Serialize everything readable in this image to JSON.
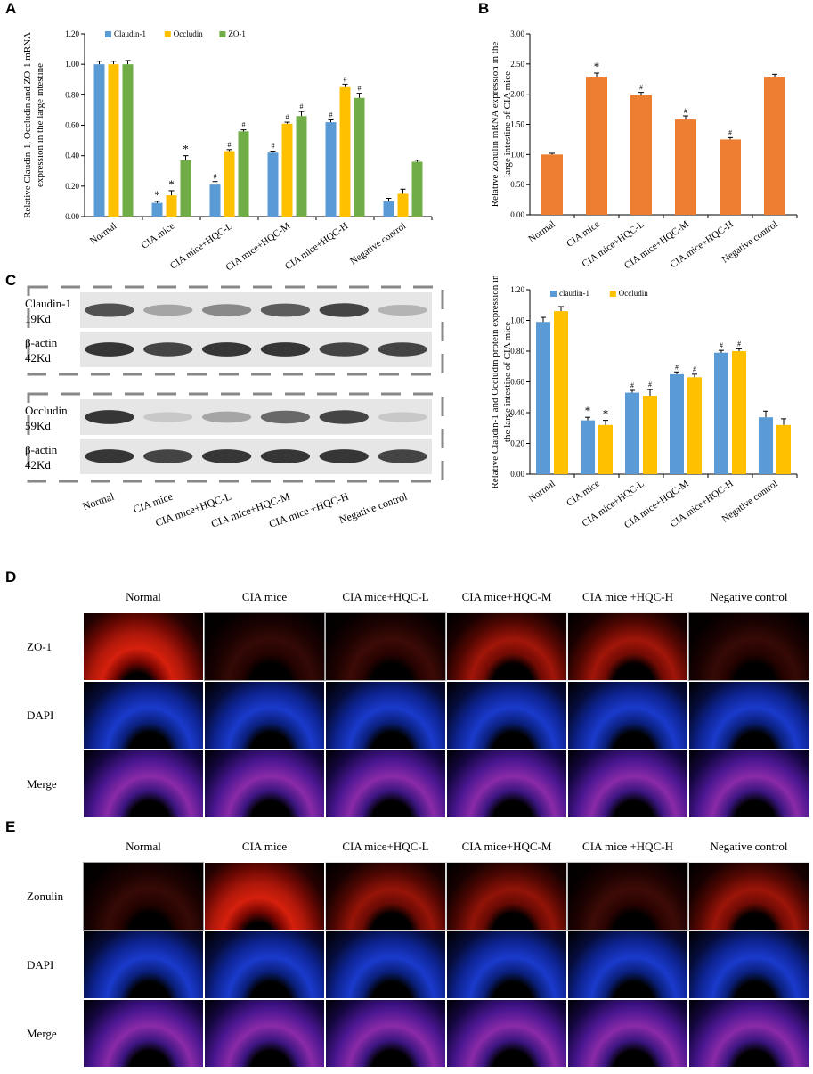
{
  "panels": {
    "a": "A",
    "b": "B",
    "c": "C",
    "d": "D",
    "e": "E"
  },
  "chart_data": [
    {
      "id": "A",
      "type": "bar",
      "ylabel": "Relative Claudin-1, Occludin and ZO-1 mRNA expression in the large intestine",
      "ylim": [
        0,
        1.2
      ],
      "yticks": [
        "0.00",
        "0.20",
        "0.40",
        "0.60",
        "0.80",
        "1.00",
        "1.20"
      ],
      "categories": [
        "Normal",
        "CIA mice",
        "CIA mice+HQC-L",
        "CIA mice+HQC-M",
        "CIA mice+HQC-H",
        "Negative control"
      ],
      "series": [
        {
          "name": "Claudin-1",
          "color": "#5b9bd5",
          "values": [
            1.0,
            0.09,
            0.21,
            0.42,
            0.62,
            0.1
          ],
          "errors": [
            0.02,
            0.01,
            0.02,
            0.01,
            0.015,
            0.02
          ],
          "marks": [
            "",
            "*",
            "#",
            "#",
            "#",
            ""
          ]
        },
        {
          "name": "Occludin",
          "color": "#ffc000",
          "values": [
            1.0,
            0.14,
            0.43,
            0.61,
            0.85,
            0.15
          ],
          "errors": [
            0.02,
            0.03,
            0.01,
            0.01,
            0.02,
            0.03
          ],
          "marks": [
            "",
            "*",
            "#",
            "#",
            "#",
            ""
          ]
        },
        {
          "name": "ZO-1",
          "color": "#70ad47",
          "values": [
            1.0,
            0.37,
            0.56,
            0.66,
            0.78,
            0.36
          ],
          "errors": [
            0.025,
            0.03,
            0.01,
            0.03,
            0.03,
            0.01
          ],
          "marks": [
            "",
            "*",
            "#",
            "#",
            "#",
            ""
          ]
        }
      ]
    },
    {
      "id": "B",
      "type": "bar",
      "ylabel": "Relative Zonulin mRNA expression in the large intestine of CIA mice",
      "ylim": [
        0,
        3.0
      ],
      "yticks": [
        "0.00",
        "0.50",
        "1.00",
        "1.50",
        "2.00",
        "2.50",
        "3.00"
      ],
      "categories": [
        "Normal",
        "CIA mice",
        "CIA mice+HQC-L",
        "CIA mice+HQC-M",
        "CIA mice+HQC-H",
        "Negative control"
      ],
      "series": [
        {
          "name": "Zonulin",
          "color": "#ed7d31",
          "values": [
            1.0,
            2.29,
            1.98,
            1.58,
            1.25,
            2.29
          ],
          "errors": [
            0.02,
            0.06,
            0.05,
            0.06,
            0.03,
            0.04
          ],
          "marks": [
            "",
            "*",
            "#",
            "#",
            "#",
            ""
          ]
        }
      ]
    },
    {
      "id": "C",
      "type": "bar",
      "ylabel": "Relative Claudin-1 and Occludin protein expression in the large intestine of CIA mice",
      "ylim": [
        0,
        1.2
      ],
      "yticks": [
        "0.00",
        "0.20",
        "0.40",
        "0.60",
        "0.80",
        "1.00",
        "1.20"
      ],
      "categories": [
        "Normal",
        "CIA mice",
        "CIA mice+HQC-L",
        "CIA mice+HQC-M",
        "CIA mice+HQC-H",
        "Negative control"
      ],
      "series": [
        {
          "name": "claudin-1",
          "color": "#5b9bd5",
          "values": [
            0.99,
            0.35,
            0.53,
            0.65,
            0.79,
            0.37
          ],
          "errors": [
            0.03,
            0.02,
            0.015,
            0.015,
            0.015,
            0.04
          ],
          "marks": [
            "",
            "*",
            "#",
            "#",
            "#",
            ""
          ]
        },
        {
          "name": "Occludin",
          "color": "#ffc000",
          "values": [
            1.06,
            0.32,
            0.51,
            0.63,
            0.8,
            0.32
          ],
          "errors": [
            0.03,
            0.03,
            0.04,
            0.02,
            0.015,
            0.04
          ],
          "marks": [
            "",
            "*",
            "#",
            "#",
            "#",
            ""
          ]
        }
      ]
    }
  ],
  "western": {
    "labels": [
      {
        "name": "Claudin-1",
        "size": "19Kd"
      },
      {
        "name": "β-actin",
        "size": "42Kd"
      },
      {
        "name": "Occludin",
        "size": "59Kd"
      },
      {
        "name": "β-actin",
        "size": "42Kd"
      }
    ],
    "lanes": [
      "Normal",
      "CIA mice",
      "CIA mice+HQC-L",
      "CIA mice+HQC-M",
      "CIA mice +HQC-H",
      "Negative control"
    ],
    "intensity": [
      [
        0.85,
        0.45,
        0.6,
        0.8,
        0.9,
        0.35
      ],
      [
        0.95,
        0.9,
        0.95,
        0.95,
        0.9,
        0.9
      ],
      [
        0.95,
        0.2,
        0.45,
        0.75,
        0.9,
        0.2
      ],
      [
        0.95,
        0.9,
        0.95,
        0.95,
        0.95,
        0.9
      ]
    ]
  },
  "panel_d": {
    "columns": [
      "Normal",
      "CIA mice",
      "CIA mice+HQC-L",
      "CIA mice+HQC-M",
      "CIA mice +HQC-H",
      "Negative control"
    ],
    "rows": [
      "ZO-1",
      "DAPI",
      "Merge"
    ],
    "red_level": [
      1.0,
      0.3,
      0.45,
      0.85,
      0.85,
      0.35
    ]
  },
  "panel_e": {
    "columns": [
      "Normal",
      "CIA mice",
      "CIA mice+HQC-L",
      "CIA mice+HQC-M",
      "CIA mice +HQC-H",
      "Negative control"
    ],
    "rows": [
      "Zonulin",
      "DAPI",
      "Merge"
    ],
    "red_level": [
      0.35,
      1.0,
      0.75,
      0.7,
      0.5,
      0.8
    ]
  }
}
